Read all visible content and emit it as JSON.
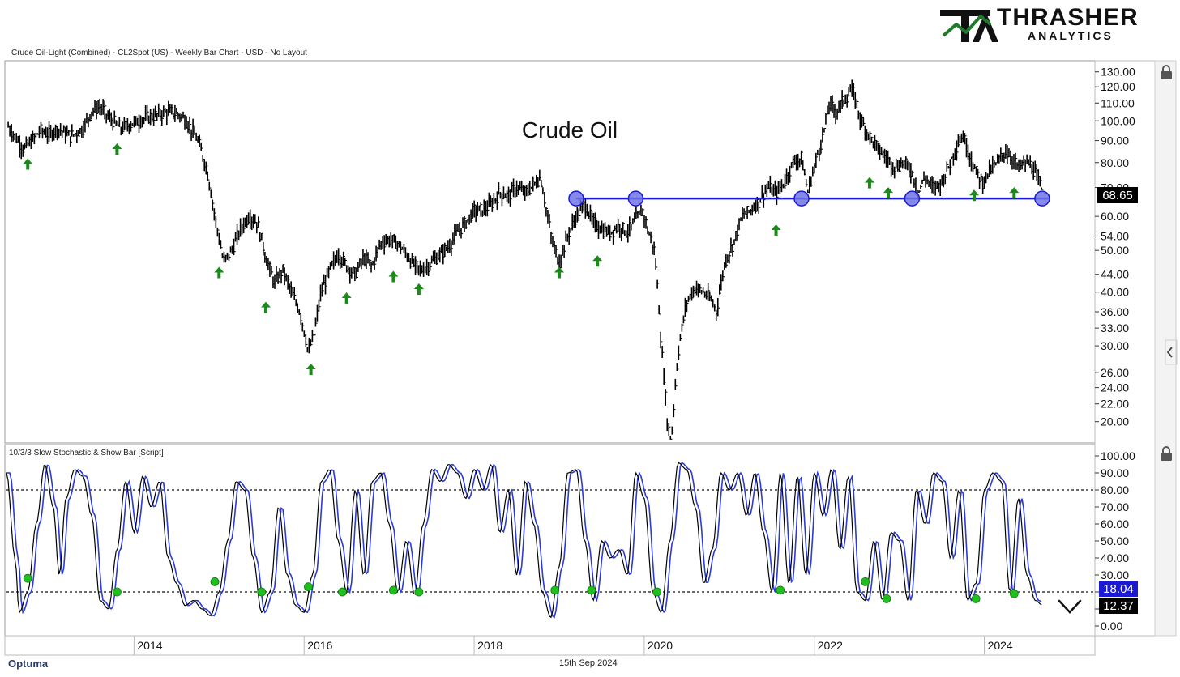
{
  "header": {
    "chart_description": "Crude Oil-Light (Combined) - CL2Spot (US) - Weekly Bar Chart - USD - No Layout",
    "indicator_description": "10/3/3 Slow Stochastic & Show Bar [Script]"
  },
  "brand": {
    "mark": "TA",
    "name": "THRASHER",
    "sub": "ANALYTICS",
    "accent": "#1f7a2e"
  },
  "footer": {
    "date": "15th Sep 2024",
    "vendor": "Optuma"
  },
  "colors": {
    "price": "#000000",
    "support_line": "#1a1ad6",
    "circle_fill": "#6f74e6",
    "arrow": "#1b8a1b",
    "stoch_k": "#000000",
    "stoch_d": "#2a3bd6",
    "stoch_dot": "#1fbf1f",
    "last_price_box": "#000000",
    "stoch_box_blue": "#1a1ad6"
  },
  "icons": [
    "lock-icon",
    "chevron-left-icon",
    "down-arrow-icon"
  ],
  "chart_data": [
    {
      "type": "bar",
      "title": "Crude Oil",
      "scale": "log",
      "ylim": [
        18,
        135
      ],
      "xlim": [
        2012.5,
        2025.1
      ],
      "y_ticks": [
        "130.00",
        "120.00",
        "110.00",
        "100.00",
        "90.00",
        "80.00",
        "70.00",
        "60.00",
        "54.00",
        "50.00",
        "44.00",
        "40.00",
        "36.00",
        "33.00",
        "30.00",
        "26.00",
        "24.00",
        "22.00",
        "20.00"
      ],
      "x_ticks": [
        "2014",
        "2016",
        "2018",
        "2020",
        "2022",
        "2024"
      ],
      "last_price": "68.65",
      "support_level": 66,
      "price_path": [
        [
          2012.52,
          97
        ],
        [
          2012.6,
          92
        ],
        [
          2012.7,
          86
        ],
        [
          2012.8,
          90
        ],
        [
          2012.9,
          95
        ],
        [
          2013.0,
          93
        ],
        [
          2013.1,
          96
        ],
        [
          2013.25,
          92
        ],
        [
          2013.4,
          96
        ],
        [
          2013.5,
          105
        ],
        [
          2013.6,
          108
        ],
        [
          2013.7,
          102
        ],
        [
          2013.85,
          96
        ],
        [
          2013.95,
          98
        ],
        [
          2014.1,
          101
        ],
        [
          2014.25,
          103
        ],
        [
          2014.4,
          105
        ],
        [
          2014.5,
          104
        ],
        [
          2014.6,
          101
        ],
        [
          2014.75,
          90
        ],
        [
          2014.85,
          78
        ],
        [
          2014.95,
          60
        ],
        [
          2015.05,
          47
        ],
        [
          2015.15,
          50
        ],
        [
          2015.25,
          56
        ],
        [
          2015.35,
          60
        ],
        [
          2015.45,
          58
        ],
        [
          2015.55,
          48
        ],
        [
          2015.65,
          42
        ],
        [
          2015.75,
          45
        ],
        [
          2015.85,
          40
        ],
        [
          2015.95,
          36
        ],
        [
          2016.05,
          29
        ],
        [
          2016.12,
          32
        ],
        [
          2016.2,
          40
        ],
        [
          2016.3,
          45
        ],
        [
          2016.4,
          49
        ],
        [
          2016.5,
          46
        ],
        [
          2016.6,
          44
        ],
        [
          2016.7,
          48
        ],
        [
          2016.8,
          46
        ],
        [
          2016.9,
          52
        ],
        [
          2017.0,
          53
        ],
        [
          2017.1,
          52
        ],
        [
          2017.2,
          49
        ],
        [
          2017.3,
          46
        ],
        [
          2017.4,
          45
        ],
        [
          2017.5,
          47
        ],
        [
          2017.6,
          49
        ],
        [
          2017.7,
          51
        ],
        [
          2017.8,
          55
        ],
        [
          2017.9,
          58
        ],
        [
          2018.0,
          62
        ],
        [
          2018.1,
          62
        ],
        [
          2018.2,
          64
        ],
        [
          2018.3,
          68
        ],
        [
          2018.4,
          67
        ],
        [
          2018.5,
          70
        ],
        [
          2018.6,
          68
        ],
        [
          2018.7,
          71
        ],
        [
          2018.78,
          74
        ],
        [
          2018.85,
          62
        ],
        [
          2018.92,
          52
        ],
        [
          2019.0,
          47
        ],
        [
          2019.1,
          54
        ],
        [
          2019.2,
          60
        ],
        [
          2019.3,
          64
        ],
        [
          2019.4,
          58
        ],
        [
          2019.5,
          56
        ],
        [
          2019.6,
          55
        ],
        [
          2019.7,
          57
        ],
        [
          2019.8,
          55
        ],
        [
          2019.9,
          59
        ],
        [
          2019.98,
          62
        ],
        [
          2020.05,
          55
        ],
        [
          2020.12,
          50
        ],
        [
          2020.2,
          30
        ],
        [
          2020.27,
          20
        ],
        [
          2020.32,
          18
        ],
        [
          2020.4,
          29
        ],
        [
          2020.5,
          38
        ],
        [
          2020.6,
          41
        ],
        [
          2020.7,
          40
        ],
        [
          2020.8,
          38
        ],
        [
          2020.85,
          36
        ],
        [
          2020.95,
          47
        ],
        [
          2021.05,
          52
        ],
        [
          2021.15,
          60
        ],
        [
          2021.25,
          62
        ],
        [
          2021.35,
          65
        ],
        [
          2021.45,
          70
        ],
        [
          2021.55,
          68
        ],
        [
          2021.65,
          72
        ],
        [
          2021.75,
          80
        ],
        [
          2021.85,
          82
        ],
        [
          2021.92,
          68
        ],
        [
          2022.0,
          78
        ],
        [
          2022.1,
          92
        ],
        [
          2022.18,
          110
        ],
        [
          2022.25,
          105
        ],
        [
          2022.35,
          112
        ],
        [
          2022.45,
          118
        ],
        [
          2022.55,
          100
        ],
        [
          2022.65,
          92
        ],
        [
          2022.75,
          86
        ],
        [
          2022.85,
          82
        ],
        [
          2022.95,
          78
        ],
        [
          2023.05,
          80
        ],
        [
          2023.15,
          76
        ],
        [
          2023.22,
          68
        ],
        [
          2023.3,
          74
        ],
        [
          2023.4,
          70
        ],
        [
          2023.5,
          72
        ],
        [
          2023.6,
          80
        ],
        [
          2023.7,
          90
        ],
        [
          2023.75,
          92
        ],
        [
          2023.82,
          84
        ],
        [
          2023.9,
          76
        ],
        [
          2023.98,
          72
        ],
        [
          2024.05,
          76
        ],
        [
          2024.15,
          80
        ],
        [
          2024.25,
          85
        ],
        [
          2024.32,
          82
        ],
        [
          2024.4,
          78
        ],
        [
          2024.48,
          80
        ],
        [
          2024.55,
          79
        ],
        [
          2024.62,
          74
        ],
        [
          2024.68,
          68.65
        ]
      ],
      "support_circles_x": [
        2019.2,
        2019.9,
        2021.85,
        2023.15,
        2024.68
      ],
      "up_arrows": [
        [
          2012.75,
          84
        ],
        [
          2013.8,
          91
        ],
        [
          2015.0,
          47
        ],
        [
          2015.55,
          39
        ],
        [
          2016.08,
          28
        ],
        [
          2016.5,
          41
        ],
        [
          2017.05,
          46
        ],
        [
          2017.35,
          43
        ],
        [
          2019.0,
          47
        ],
        [
          2019.45,
          50
        ],
        [
          2021.55,
          59
        ],
        [
          2022.65,
          76
        ],
        [
          2022.87,
          72
        ],
        [
          2023.88,
          71
        ],
        [
          2024.35,
          72
        ]
      ]
    },
    {
      "type": "line",
      "title": "",
      "ylim": [
        0,
        100
      ],
      "y_ticks": [
        "100.00",
        "90.00",
        "80.00",
        "70.00",
        "60.00",
        "50.00",
        "40.00",
        "30.00",
        "20.00",
        "10.00",
        "0.00"
      ],
      "overbought": 80,
      "oversold": 20,
      "last_values": [
        "18.04",
        "12.37"
      ],
      "series": [
        {
          "values": [
            [
              2012.5,
              90
            ],
            [
              2012.6,
              40
            ],
            [
              2012.65,
              8
            ],
            [
              2012.75,
              20
            ],
            [
              2012.85,
              60
            ],
            [
              2012.95,
              95
            ],
            [
              2013.05,
              70
            ],
            [
              2013.12,
              30
            ],
            [
              2013.2,
              75
            ],
            [
              2013.3,
              92
            ],
            [
              2013.4,
              88
            ],
            [
              2013.5,
              65
            ],
            [
              2013.6,
              15
            ],
            [
              2013.7,
              10
            ],
            [
              2013.8,
              45
            ],
            [
              2013.9,
              85
            ],
            [
              2014.0,
              55
            ],
            [
              2014.1,
              88
            ],
            [
              2014.2,
              70
            ],
            [
              2014.3,
              85
            ],
            [
              2014.4,
              40
            ],
            [
              2014.5,
              25
            ],
            [
              2014.6,
              12
            ],
            [
              2014.7,
              15
            ],
            [
              2014.8,
              10
            ],
            [
              2014.9,
              6
            ],
            [
              2015.0,
              20
            ],
            [
              2015.1,
              50
            ],
            [
              2015.2,
              85
            ],
            [
              2015.3,
              80
            ],
            [
              2015.4,
              40
            ],
            [
              2015.5,
              8
            ],
            [
              2015.6,
              20
            ],
            [
              2015.7,
              70
            ],
            [
              2015.8,
              30
            ],
            [
              2015.9,
              12
            ],
            [
              2016.0,
              8
            ],
            [
              2016.1,
              30
            ],
            [
              2016.2,
              85
            ],
            [
              2016.3,
              92
            ],
            [
              2016.4,
              50
            ],
            [
              2016.5,
              20
            ],
            [
              2016.6,
              80
            ],
            [
              2016.7,
              30
            ],
            [
              2016.8,
              85
            ],
            [
              2016.9,
              90
            ],
            [
              2017.0,
              60
            ],
            [
              2017.1,
              20
            ],
            [
              2017.2,
              50
            ],
            [
              2017.3,
              18
            ],
            [
              2017.4,
              60
            ],
            [
              2017.5,
              92
            ],
            [
              2017.6,
              85
            ],
            [
              2017.7,
              95
            ],
            [
              2017.8,
              90
            ],
            [
              2017.9,
              75
            ],
            [
              2018.0,
              92
            ],
            [
              2018.1,
              80
            ],
            [
              2018.2,
              95
            ],
            [
              2018.3,
              55
            ],
            [
              2018.4,
              80
            ],
            [
              2018.5,
              30
            ],
            [
              2018.6,
              85
            ],
            [
              2018.7,
              60
            ],
            [
              2018.8,
              20
            ],
            [
              2018.9,
              5
            ],
            [
              2019.0,
              35
            ],
            [
              2019.1,
              90
            ],
            [
              2019.2,
              92
            ],
            [
              2019.3,
              50
            ],
            [
              2019.4,
              15
            ],
            [
              2019.5,
              50
            ],
            [
              2019.6,
              40
            ],
            [
              2019.7,
              45
            ],
            [
              2019.8,
              30
            ],
            [
              2019.9,
              90
            ],
            [
              2020.0,
              75
            ],
            [
              2020.1,
              20
            ],
            [
              2020.2,
              8
            ],
            [
              2020.3,
              50
            ],
            [
              2020.4,
              96
            ],
            [
              2020.5,
              92
            ],
            [
              2020.6,
              70
            ],
            [
              2020.7,
              25
            ],
            [
              2020.8,
              45
            ],
            [
              2020.9,
              90
            ],
            [
              2021.0,
              80
            ],
            [
              2021.1,
              90
            ],
            [
              2021.2,
              65
            ],
            [
              2021.3,
              90
            ],
            [
              2021.4,
              55
            ],
            [
              2021.5,
              20
            ],
            [
              2021.6,
              90
            ],
            [
              2021.7,
              25
            ],
            [
              2021.8,
              88
            ],
            [
              2021.9,
              30
            ],
            [
              2022.0,
              90
            ],
            [
              2022.1,
              65
            ],
            [
              2022.2,
              92
            ],
            [
              2022.3,
              45
            ],
            [
              2022.4,
              88
            ],
            [
              2022.5,
              20
            ],
            [
              2022.6,
              15
            ],
            [
              2022.7,
              50
            ],
            [
              2022.8,
              15
            ],
            [
              2022.9,
              55
            ],
            [
              2023.0,
              50
            ],
            [
              2023.1,
              15
            ],
            [
              2023.2,
              80
            ],
            [
              2023.3,
              60
            ],
            [
              2023.4,
              90
            ],
            [
              2023.5,
              85
            ],
            [
              2023.6,
              40
            ],
            [
              2023.7,
              80
            ],
            [
              2023.8,
              15
            ],
            [
              2023.9,
              25
            ],
            [
              2024.0,
              80
            ],
            [
              2024.1,
              90
            ],
            [
              2024.2,
              85
            ],
            [
              2024.3,
              20
            ],
            [
              2024.4,
              75
            ],
            [
              2024.5,
              30
            ],
            [
              2024.6,
              15
            ],
            [
              2024.68,
              12.37
            ]
          ]
        }
      ],
      "dots": [
        [
          2012.75,
          28
        ],
        [
          2013.8,
          20
        ],
        [
          2014.95,
          26
        ],
        [
          2015.5,
          20
        ],
        [
          2016.05,
          23
        ],
        [
          2016.45,
          20
        ],
        [
          2017.05,
          21
        ],
        [
          2017.35,
          20
        ],
        [
          2018.95,
          21
        ],
        [
          2019.38,
          21
        ],
        [
          2020.15,
          20
        ],
        [
          2021.6,
          21
        ],
        [
          2022.6,
          26
        ],
        [
          2022.85,
          16
        ],
        [
          2023.9,
          16
        ],
        [
          2024.35,
          19
        ]
      ]
    }
  ]
}
